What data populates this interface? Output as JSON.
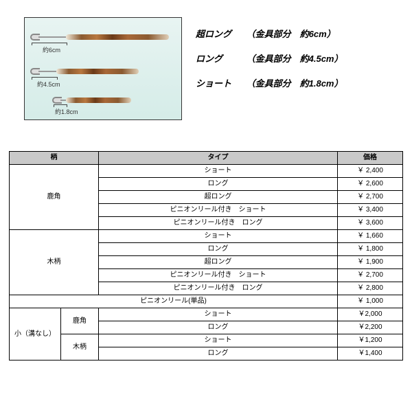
{
  "legend": {
    "rows": [
      {
        "label": "超ロング",
        "detail": "（金具部分　約6cm）"
      },
      {
        "label": "ロング",
        "detail": "（金具部分　約4.5cm）"
      },
      {
        "label": "ショート",
        "detail": "（金具部分　約1.8cm）"
      }
    ]
  },
  "image_labels": {
    "dim1": "約6cm",
    "dim2": "約4.5cm",
    "dim3": "約1.8cm"
  },
  "columns": {
    "handle": "柄",
    "type": "タイプ",
    "price": "価格"
  },
  "groups": [
    {
      "handle": "鹿角",
      "rows": [
        {
          "type": "ショート",
          "price": "￥ 2,400"
        },
        {
          "type": "ロング",
          "price": "￥ 2,600"
        },
        {
          "type": "超ロング",
          "price": "￥ 2,700"
        },
        {
          "type": "ピニオンリール付き　ショート",
          "price": "￥ 3,400"
        },
        {
          "type": "ピニオンリール付き　ロング",
          "price": "￥ 3,600"
        }
      ]
    },
    {
      "handle": "木柄",
      "rows": [
        {
          "type": "ショート",
          "price": "￥ 1,660"
        },
        {
          "type": "ロング",
          "price": "￥ 1,800"
        },
        {
          "type": "超ロング",
          "price": "￥ 1,900"
        },
        {
          "type": "ピニオンリール付き　ショート",
          "price": "￥ 2,700"
        },
        {
          "type": "ピニオンリール付き　ロング",
          "price": "￥ 2,800"
        }
      ]
    }
  ],
  "single_row": {
    "type": "ピニオンリール(単品)",
    "price": "￥ 1,000"
  },
  "small_group": {
    "label": "小（溝なし）",
    "subgroups": [
      {
        "handle": "鹿角",
        "rows": [
          {
            "type": "ショート",
            "price": "￥2,000"
          },
          {
            "type": "ロング",
            "price": "￥2,200"
          }
        ]
      },
      {
        "handle": "木柄",
        "rows": [
          {
            "type": "ショート",
            "price": "￥1,200"
          },
          {
            "type": "ロング",
            "price": "￥1,400"
          }
        ]
      }
    ]
  }
}
